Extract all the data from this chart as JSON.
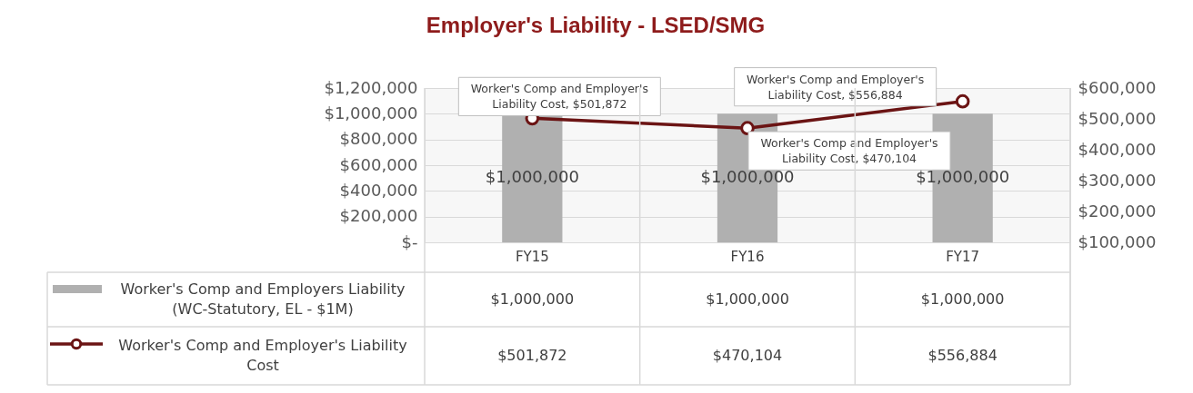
{
  "chart_data": {
    "type": "bar",
    "title": "Employer's Liability - LSED/SMG",
    "categories": [
      "FY15",
      "FY16",
      "FY17"
    ],
    "series": [
      {
        "name": "Worker's Comp and Employers Liability (WC-Statutory, EL - $1M)",
        "color": "#b0b0b0",
        "values": [
          1000000,
          1000000,
          1000000
        ],
        "value_labels": [
          "$1,000,000",
          "$1,000,000",
          "$1,000,000"
        ]
      },
      {
        "name": "Worker's Comp and Employer's Liability Cost",
        "type": "line",
        "axis": "y2",
        "color": "#6b1414",
        "marker": "circle",
        "values": [
          501872,
          470104,
          556884
        ],
        "value_labels": [
          "$501,872",
          "$470,104",
          "$556,884"
        ]
      }
    ],
    "ylim": [
      0,
      1200000
    ],
    "yticks": [
      {
        "value": 0,
        "label": "$-"
      },
      {
        "value": 200000,
        "label": "$200,000"
      },
      {
        "value": 400000,
        "label": "$400,000"
      },
      {
        "value": 600000,
        "label": "$600,000"
      },
      {
        "value": 800000,
        "label": "$800,000"
      },
      {
        "value": 1000000,
        "label": "$1,000,000"
      },
      {
        "value": 1200000,
        "label": "$1,200,000"
      }
    ],
    "y2lim": [
      100000,
      600000
    ],
    "y2ticks": [
      {
        "value": 100000,
        "label": "$100,000"
      },
      {
        "value": 200000,
        "label": "$200,000"
      },
      {
        "value": 300000,
        "label": "$300,000"
      },
      {
        "value": 400000,
        "label": "$400,000"
      },
      {
        "value": 500000,
        "label": "$500,000"
      },
      {
        "value": 600000,
        "label": "$600,000"
      }
    ],
    "grid": "y",
    "legend": "bottom",
    "annotations": [
      "Worker's Comp and Employer's Liability Cost, $501,872",
      "Worker's Comp and Employer's Liability Cost, $470,104",
      "Worker's Comp and Employer's Liability Cost, $556,884"
    ]
  }
}
